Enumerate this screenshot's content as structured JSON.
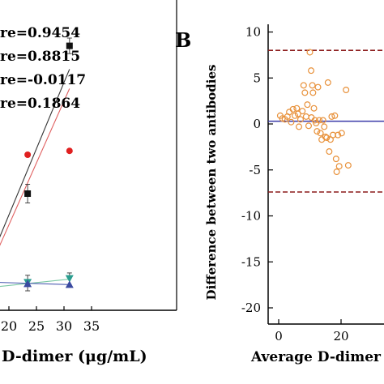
{
  "panel_b_label": "B",
  "chart_data": [
    {
      "type": "scatter",
      "panel": "A (cropped)",
      "xlabel": "D-dimer (μg/mL)",
      "x_ticks": [
        20,
        25,
        30,
        35
      ],
      "xlim": [
        17.5,
        35
      ],
      "annotations": [
        "re=0.9454",
        "re=0.8815",
        "re=-0.0117",
        "re=0.1864"
      ],
      "series": [
        {
          "color": "#111111",
          "marker": "square",
          "x": [
            23.4,
            31.0
          ],
          "y": [
            15.0,
            34.0
          ],
          "err": [
            1.2,
            1.0
          ]
        },
        {
          "color": "#e02020",
          "marker": "circle",
          "x": [
            23.4,
            31.0
          ],
          "y": [
            20.0,
            20.5
          ]
        },
        {
          "color": "#2a9d8f",
          "marker": "triangle-down",
          "x": [
            23.4,
            31.0
          ],
          "y": [
            3.5,
            4.0
          ],
          "err": [
            1.0,
            0.8
          ]
        },
        {
          "color": "#3a4aa0",
          "marker": "triangle-up",
          "x": [
            23.4,
            31.0
          ],
          "y": [
            3.4,
            3.3
          ]
        }
      ],
      "fit_lines": [
        {
          "color": "#333333",
          "x": [
            17.5,
            31.0
          ],
          "y": [
            8.0,
            31.0
          ]
        },
        {
          "color": "#e06060",
          "x": [
            17.5,
            31.0
          ],
          "y": [
            7.0,
            28.5
          ]
        },
        {
          "color": "#7bc8a4",
          "x": [
            17.5,
            31.0
          ],
          "y": [
            3.0,
            4.0
          ]
        },
        {
          "color": "#4a5ab0",
          "x": [
            17.5,
            31.0
          ],
          "y": [
            3.6,
            3.3
          ]
        }
      ]
    },
    {
      "type": "scatter",
      "panel": "B",
      "xlabel": "Average D-dimer",
      "ylabel": "Difference between two antibodies",
      "x_ticks": [
        0,
        20
      ],
      "y_ticks": [
        10,
        5,
        0,
        -5,
        -10,
        -15,
        -20
      ],
      "ylim": [
        -21,
        10.5
      ],
      "mean_line": {
        "y": 0.3,
        "color": "#3a3aa8"
      },
      "limit_lines": [
        {
          "y": 8.0,
          "color": "#8b1a1a"
        },
        {
          "y": -7.4,
          "color": "#8b1a1a"
        }
      ],
      "marker_color": "#e8913a",
      "points": [
        [
          0.5,
          0.9
        ],
        [
          1.2,
          0.6
        ],
        [
          2.0,
          0.5
        ],
        [
          2.8,
          0.8
        ],
        [
          3.4,
          1.3
        ],
        [
          4.0,
          0.2
        ],
        [
          4.6,
          1.6
        ],
        [
          5.2,
          0.9
        ],
        [
          5.8,
          1.7
        ],
        [
          6.2,
          1.1
        ],
        [
          6.5,
          -0.3
        ],
        [
          7.0,
          0.5
        ],
        [
          7.6,
          1.4
        ],
        [
          8.0,
          4.2
        ],
        [
          8.4,
          3.4
        ],
        [
          8.8,
          0.8
        ],
        [
          9.2,
          2.1
        ],
        [
          9.6,
          -0.2
        ],
        [
          10.0,
          7.8
        ],
        [
          10.4,
          5.8
        ],
        [
          10.5,
          0.7
        ],
        [
          10.8,
          4.2
        ],
        [
          11.0,
          3.4
        ],
        [
          11.3,
          1.7
        ],
        [
          11.6,
          0.4
        ],
        [
          12.0,
          0.1
        ],
        [
          12.3,
          -0.8
        ],
        [
          12.6,
          4.0
        ],
        [
          13.0,
          0.4
        ],
        [
          13.4,
          -1.0
        ],
        [
          13.8,
          -1.7
        ],
        [
          14.2,
          0.4
        ],
        [
          14.6,
          -0.3
        ],
        [
          15.0,
          -1.4
        ],
        [
          15.4,
          -1.5
        ],
        [
          15.8,
          4.5
        ],
        [
          16.2,
          -3.0
        ],
        [
          16.6,
          -1.7
        ],
        [
          17.0,
          0.8
        ],
        [
          17.4,
          -1.2
        ],
        [
          18.0,
          0.9
        ],
        [
          18.4,
          -3.8
        ],
        [
          18.6,
          -5.2
        ],
        [
          19.0,
          -1.2
        ],
        [
          19.4,
          -4.6
        ],
        [
          20.2,
          -1.0
        ],
        [
          21.6,
          3.7
        ],
        [
          22.3,
          -4.5
        ]
      ]
    }
  ]
}
